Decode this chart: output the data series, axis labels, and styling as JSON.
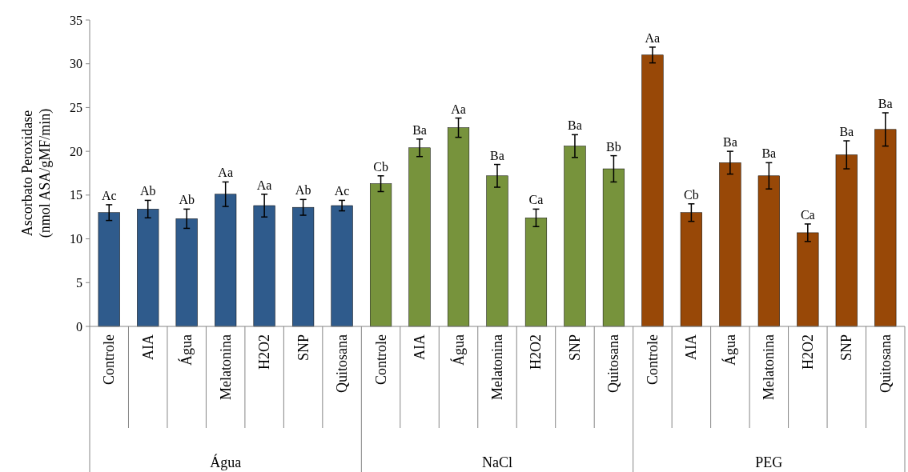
{
  "chart_data": {
    "type": "bar",
    "ylabel": "Ascorbato Peroxidase (nmol ASA/gMF/min)",
    "categories": [
      "Controle",
      "AIA",
      "Água",
      "Melatonina",
      "H2O2",
      "SNP",
      "Quitosana",
      "Controle",
      "AIA",
      "Água",
      "Melatonina",
      "H2O2",
      "SNP",
      "Quitosana",
      "Controle",
      "AIA",
      "Água",
      "Melatonina",
      "H2O2",
      "SNP",
      "Quitosana"
    ],
    "values": [
      13.0,
      13.4,
      12.3,
      15.1,
      13.8,
      13.6,
      13.8,
      16.3,
      20.4,
      22.7,
      17.2,
      12.4,
      20.6,
      18.0,
      31.0,
      13.0,
      18.7,
      17.2,
      10.7,
      19.6,
      22.5
    ],
    "errors": [
      0.9,
      1.0,
      1.1,
      1.4,
      1.3,
      0.9,
      0.6,
      0.9,
      1.0,
      1.1,
      1.3,
      1.0,
      1.3,
      1.5,
      0.9,
      1.0,
      1.3,
      1.5,
      1.0,
      1.6,
      1.9
    ],
    "colors": [
      "#2f5b8c",
      "#2f5b8c",
      "#2f5b8c",
      "#2f5b8c",
      "#2f5b8c",
      "#2f5b8c",
      "#2f5b8c",
      "#77933c",
      "#77933c",
      "#77933c",
      "#77933c",
      "#77933c",
      "#77933c",
      "#77933c",
      "#984807",
      "#984807",
      "#984807",
      "#984807",
      "#984807",
      "#984807",
      "#984807"
    ],
    "value_labels": [
      "Ac",
      "Ab",
      "Ab",
      "Aa",
      "Aa",
      "Ab",
      "Ac",
      "Cb",
      "Ba",
      "Aa",
      "Ba",
      "Ca",
      "Ba",
      "Bb",
      "Aa",
      "Cb",
      "Ba",
      "Ba",
      "Ca",
      "Ba",
      "Ba"
    ],
    "annotations": [
      "Água",
      "NaCl",
      "PEG"
    ],
    "ylim": [
      0,
      35
    ],
    "yticks": [
      0,
      5,
      10,
      15,
      20,
      25,
      30,
      35
    ]
  }
}
